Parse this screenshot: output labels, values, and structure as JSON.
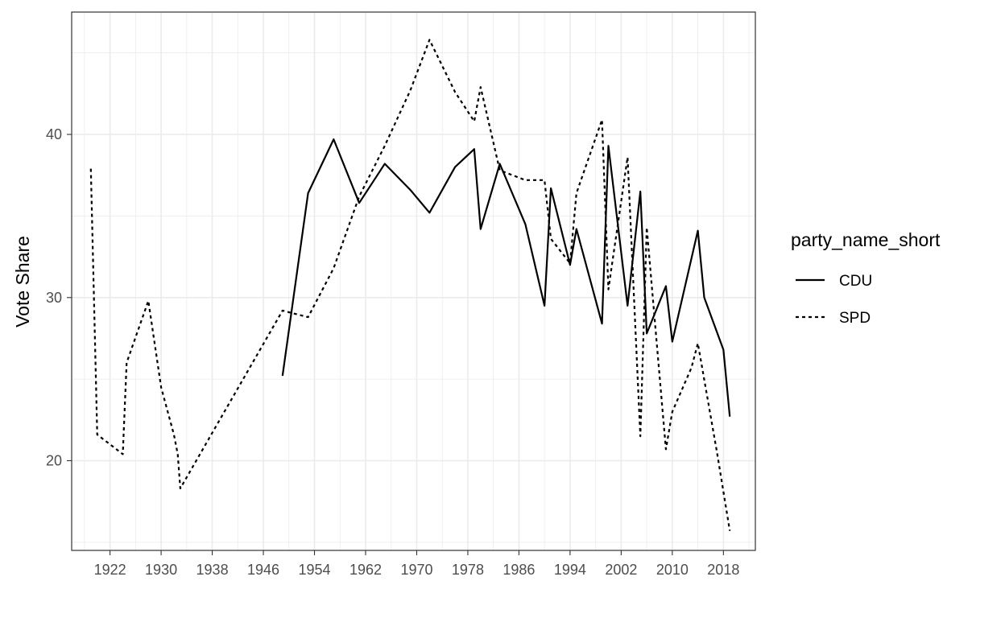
{
  "chart_data": {
    "type": "line",
    "title": "",
    "xlabel": "",
    "ylabel": "Vote Share",
    "xlim": [
      1916,
      2023
    ],
    "ylim": [
      14.5,
      47.5
    ],
    "x_ticks": [
      1922,
      1930,
      1938,
      1946,
      1954,
      1962,
      1970,
      1978,
      1986,
      1994,
      2002,
      2010,
      2018
    ],
    "y_ticks": [
      20,
      30,
      40
    ],
    "grid": true,
    "legend": {
      "title": "party_name_short",
      "position": "right"
    },
    "series": [
      {
        "name": "CDU",
        "line_style": "solid",
        "color": "#000000",
        "points": [
          [
            1949,
            25.2
          ],
          [
            1953,
            36.4
          ],
          [
            1957,
            39.7
          ],
          [
            1961,
            35.8
          ],
          [
            1965,
            38.2
          ],
          [
            1969,
            36.6
          ],
          [
            1972,
            35.2
          ],
          [
            1976,
            38.0
          ],
          [
            1979,
            39.1
          ],
          [
            1980,
            34.2
          ],
          [
            1983,
            38.2
          ],
          [
            1987,
            34.5
          ],
          [
            1990,
            29.5
          ],
          [
            1991,
            36.7
          ],
          [
            1994,
            32.0
          ],
          [
            1995,
            34.2
          ],
          [
            1999,
            28.4
          ],
          [
            2000,
            39.3
          ],
          [
            2003,
            29.5
          ],
          [
            2005,
            36.5
          ],
          [
            2006,
            27.8
          ],
          [
            2009,
            30.7
          ],
          [
            2010,
            27.3
          ],
          [
            2014,
            34.1
          ],
          [
            2015,
            30.0
          ],
          [
            2018,
            26.8
          ],
          [
            2019,
            22.7
          ]
        ]
      },
      {
        "name": "SPD",
        "line_style": "dashed",
        "color": "#000000",
        "points": [
          [
            1919,
            37.9
          ],
          [
            1920,
            21.6
          ],
          [
            1924,
            20.4
          ],
          [
            1924.6,
            26.0
          ],
          [
            1928,
            29.8
          ],
          [
            1930,
            24.5
          ],
          [
            1932,
            21.6
          ],
          [
            1932.6,
            20.4
          ],
          [
            1933,
            18.3
          ],
          [
            1949,
            29.2
          ],
          [
            1953,
            28.8
          ],
          [
            1957,
            31.8
          ],
          [
            1961,
            36.2
          ],
          [
            1965,
            39.3
          ],
          [
            1969,
            42.7
          ],
          [
            1972,
            45.8
          ],
          [
            1976,
            42.6
          ],
          [
            1979,
            40.8
          ],
          [
            1980,
            42.9
          ],
          [
            1983,
            37.8
          ],
          [
            1987,
            37.2
          ],
          [
            1990,
            37.2
          ],
          [
            1991,
            33.6
          ],
          [
            1994,
            32.1
          ],
          [
            1995,
            36.4
          ],
          [
            1999,
            40.9
          ],
          [
            2000,
            30.5
          ],
          [
            2003,
            38.6
          ],
          [
            2005,
            21.5
          ],
          [
            2006,
            34.3
          ],
          [
            2009,
            20.7
          ],
          [
            2010,
            23.0
          ],
          [
            2013,
            25.7
          ],
          [
            2014,
            27.2
          ],
          [
            2017,
            20.5
          ],
          [
            2019,
            15.7
          ]
        ]
      }
    ]
  }
}
